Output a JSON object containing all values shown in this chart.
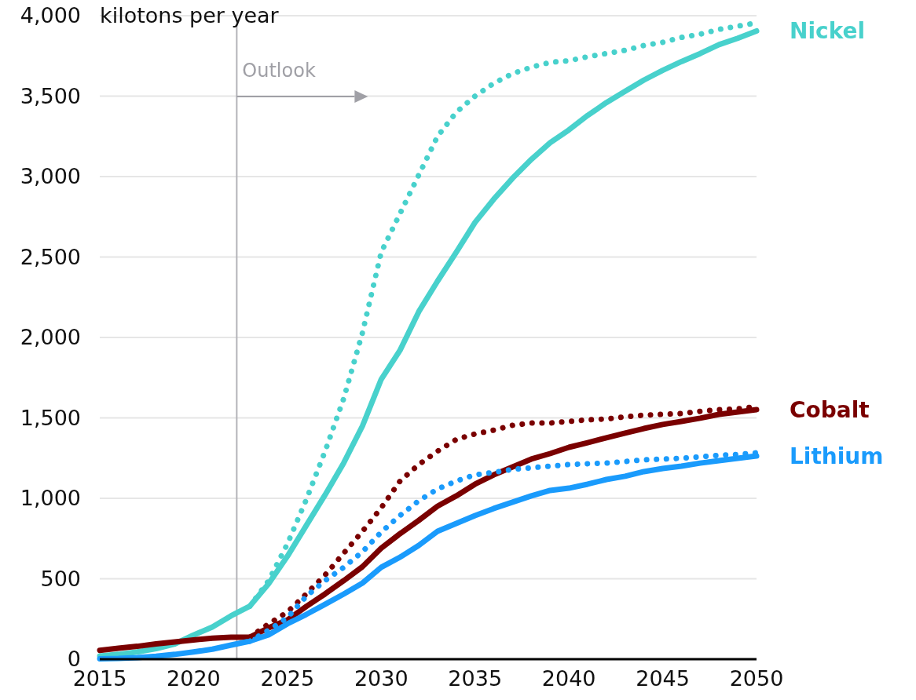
{
  "chart_data": {
    "type": "line",
    "ylabel": "kilotons per year",
    "x": [
      2015,
      2016,
      2017,
      2018,
      2019,
      2020,
      2021,
      2022,
      2023,
      2024,
      2025,
      2026,
      2027,
      2028,
      2029,
      2030,
      2031,
      2032,
      2033,
      2034,
      2035,
      2036,
      2037,
      2038,
      2039,
      2040,
      2041,
      2042,
      2043,
      2044,
      2045,
      2046,
      2047,
      2048,
      2049,
      2050
    ],
    "xlim": [
      2015,
      2050
    ],
    "xticks": [
      2015,
      2020,
      2025,
      2030,
      2035,
      2040,
      2045,
      2050
    ],
    "ylim": [
      0,
      4000
    ],
    "yticks": [
      {
        "value": 0,
        "label": "0"
      },
      {
        "value": 500,
        "label": "500"
      },
      {
        "value": 1000,
        "label": "1,000"
      },
      {
        "value": 1500,
        "label": "1,500"
      },
      {
        "value": 2000,
        "label": "2,000"
      },
      {
        "value": 2500,
        "label": "2,500"
      },
      {
        "value": 3000,
        "label": "3,000"
      },
      {
        "value": 3500,
        "label": "3,500"
      },
      {
        "value": 4000,
        "label": "4,000"
      }
    ],
    "grid": "y",
    "marker": "none",
    "ref_lines": [
      {
        "axis": "x",
        "value": 2022.3,
        "label": "Outlook",
        "color": "#b3b3b8",
        "line_style": "solid"
      }
    ],
    "series": [
      {
        "name": "Nickel",
        "color": "#48d1cc",
        "line_style": "solid",
        "values": [
          20,
          30,
          45,
          65,
          95,
          150,
          200,
          270,
          330,
          470,
          640,
          830,
          1020,
          1220,
          1450,
          1740,
          1920,
          2160,
          2350,
          2530,
          2715,
          2860,
          2990,
          3107,
          3210,
          3290,
          3380,
          3460,
          3530,
          3600,
          3660,
          3715,
          3765,
          3820,
          3860,
          3905
        ]
      },
      {
        "name": "Cobalt",
        "color": "#7a0000",
        "line_style": "solid",
        "values": [
          55,
          68,
          80,
          95,
          107,
          120,
          130,
          137,
          137,
          195,
          244,
          327,
          405,
          488,
          575,
          690,
          780,
          863,
          951,
          1015,
          1088,
          1146,
          1195,
          1244,
          1278,
          1317,
          1346,
          1376,
          1405,
          1434,
          1459,
          1478,
          1498,
          1522,
          1537,
          1551
        ]
      },
      {
        "name": "Lithium",
        "color": "#1a9bfc",
        "line_style": "solid",
        "values": [
          3,
          5,
          10,
          18,
          30,
          45,
          62,
          88,
          112,
          151,
          220,
          278,
          341,
          405,
          473,
          571,
          634,
          707,
          795,
          844,
          893,
          937,
          976,
          1015,
          1049,
          1063,
          1088,
          1117,
          1137,
          1166,
          1185,
          1200,
          1219,
          1234,
          1249,
          1263
        ]
      },
      {
        "color": "#48d1cc",
        "line_style": "dotted",
        "x": [
          2023,
          2024,
          2025,
          2026,
          2027,
          2028,
          2029,
          2030,
          2031,
          2032,
          2033,
          2034,
          2035,
          2036,
          2037,
          2038,
          2039,
          2040,
          2041,
          2042,
          2043,
          2044,
          2045,
          2046,
          2047,
          2048,
          2049,
          2050
        ],
        "values": [
          330,
          488,
          717,
          990,
          1290,
          1620,
          2030,
          2530,
          2770,
          3010,
          3250,
          3400,
          3500,
          3580,
          3640,
          3680,
          3710,
          3720,
          3745,
          3765,
          3785,
          3815,
          3835,
          3865,
          3885,
          3915,
          3935,
          3955
        ]
      },
      {
        "color": "#7a0000",
        "line_style": "dotted",
        "x": [
          2023,
          2024,
          2025,
          2026,
          2027,
          2028,
          2029,
          2030,
          2031,
          2032,
          2033,
          2034,
          2035,
          2036,
          2037,
          2038,
          2039,
          2040,
          2041,
          2042,
          2043,
          2044,
          2045,
          2046,
          2047,
          2048,
          2049,
          2050
        ],
        "values": [
          137,
          220,
          293,
          405,
          522,
          659,
          795,
          941,
          1107,
          1210,
          1293,
          1366,
          1400,
          1424,
          1454,
          1468,
          1468,
          1478,
          1488,
          1493,
          1507,
          1517,
          1522,
          1527,
          1541,
          1551,
          1556,
          1570
        ]
      },
      {
        "color": "#1a9bfc",
        "line_style": "dotted",
        "x": [
          2023,
          2024,
          2025,
          2026,
          2027,
          2028,
          2029,
          2030,
          2031,
          2032,
          2033,
          2034,
          2035,
          2036,
          2037,
          2038,
          2039,
          2040,
          2041,
          2042,
          2043,
          2044,
          2045,
          2046,
          2047,
          2048,
          2049,
          2050
        ],
        "values": [
          112,
          180,
          259,
          390,
          488,
          571,
          668,
          790,
          893,
          985,
          1058,
          1107,
          1146,
          1161,
          1180,
          1190,
          1200,
          1210,
          1215,
          1219,
          1229,
          1239,
          1244,
          1249,
          1258,
          1268,
          1273,
          1283
        ]
      }
    ]
  }
}
